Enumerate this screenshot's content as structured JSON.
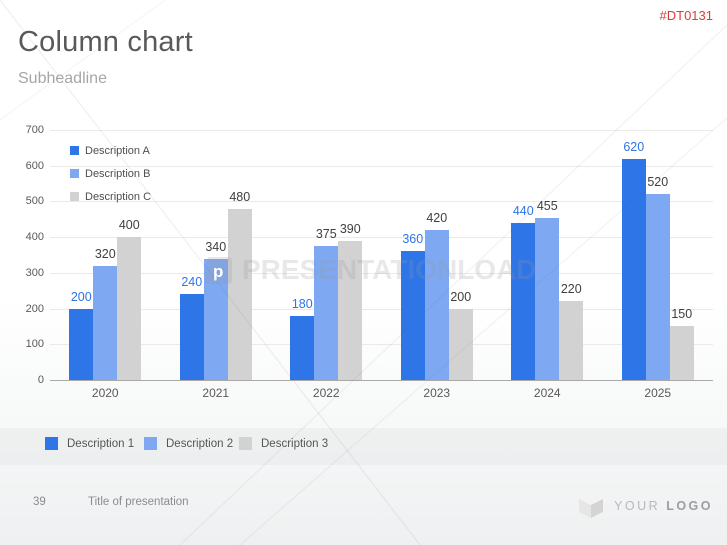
{
  "header": {
    "title": "Column chart",
    "subheadline": "Subheadline",
    "code": "#DT0131"
  },
  "chart_data": {
    "type": "bar",
    "title": "",
    "xlabel": "",
    "ylabel": "",
    "categories": [
      "2020",
      "2021",
      "2022",
      "2023",
      "2024",
      "2025"
    ],
    "series": [
      {
        "name": "Description A",
        "color": "#2e75e8",
        "label_color": "#2e75e8",
        "values": [
          200,
          240,
          180,
          360,
          440,
          620
        ]
      },
      {
        "name": "Description B",
        "color": "#7ea8f1",
        "label_color": "#404040",
        "values": [
          320,
          340,
          375,
          420,
          455,
          520
        ]
      },
      {
        "name": "Description C",
        "color": "#d2d2d2",
        "label_color": "#404040",
        "values": [
          400,
          480,
          390,
          200,
          220,
          150
        ]
      }
    ],
    "ylim": [
      0,
      700
    ],
    "ytick_step": 100,
    "grid": true,
    "legend_position": "top-left-inside",
    "data_labels": true
  },
  "bottom_legend": {
    "items": [
      {
        "label": "Description 1",
        "color": "#2e75e8"
      },
      {
        "label": "Description 2",
        "color": "#7ea8f1"
      },
      {
        "label": "Description 3",
        "color": "#d2d2d2"
      }
    ]
  },
  "watermark": {
    "text": "PRESENTATIONLOAD"
  },
  "footer": {
    "page_number": "39",
    "title": "Title of presentation",
    "logo_text_light": "YOUR ",
    "logo_text_bold": "LOGO"
  },
  "colors": {
    "accent_blue": "#2e75e8",
    "light_blue": "#7ea8f1",
    "bar_gray": "#d2d2d2",
    "code_red": "#e03c31"
  }
}
